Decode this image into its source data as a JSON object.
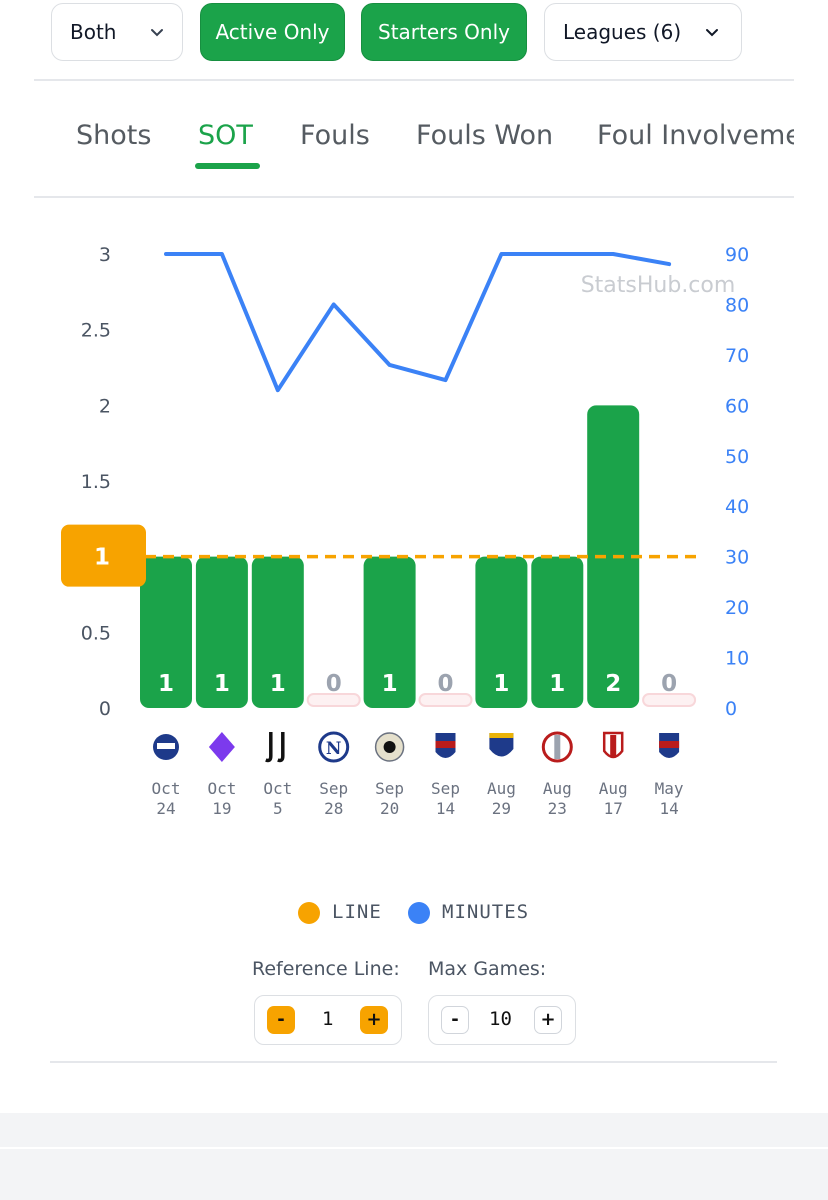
{
  "filters": {
    "side": "Both",
    "active_only": "Active Only",
    "starters_only": "Starters Only",
    "leagues": "Leagues (6)"
  },
  "tabs": [
    {
      "label": "Shots",
      "active": false
    },
    {
      "label": "SOT",
      "active": true
    },
    {
      "label": "Fouls",
      "active": false
    },
    {
      "label": "Fouls Won",
      "active": false
    },
    {
      "label": "Foul Involveme",
      "active": false
    }
  ],
  "watermark": "StatsHub.com",
  "colors": {
    "bar": "#1ba34a",
    "line": "#f7a300",
    "minutes": "#3b82f6",
    "zero_marker": "#f8d7da"
  },
  "chart_data": {
    "type": "bar",
    "categories": [
      {
        "month": "Oct",
        "day": "24",
        "opponent_icon": "pisa-crest-icon"
      },
      {
        "month": "Oct",
        "day": "19",
        "opponent_icon": "fiorentina-crest-icon"
      },
      {
        "month": "Oct",
        "day": "5",
        "opponent_icon": "juventus-crest-icon"
      },
      {
        "month": "Sep",
        "day": "28",
        "opponent_icon": "napoli-crest-icon"
      },
      {
        "month": "Sep",
        "day": "20",
        "opponent_icon": "udinese-crest-icon"
      },
      {
        "month": "Sep",
        "day": "14",
        "opponent_icon": "bologna-crest-icon"
      },
      {
        "month": "Aug",
        "day": "29",
        "opponent_icon": "lecce-crest-icon"
      },
      {
        "month": "Aug",
        "day": "23",
        "opponent_icon": "cremonese-crest-icon"
      },
      {
        "month": "Aug",
        "day": "17",
        "opponent_icon": "bari-crest-icon"
      },
      {
        "month": "May",
        "day": "14",
        "opponent_icon": "bologna-crest-icon"
      }
    ],
    "values": [
      1,
      1,
      1,
      0,
      1,
      0,
      1,
      1,
      2,
      0
    ],
    "minutes": [
      90,
      90,
      63,
      80,
      68,
      65,
      90,
      90,
      90,
      88
    ],
    "line_value": 1,
    "line_label": "1",
    "y_ticks": [
      "0",
      "0.5",
      "1",
      "1.5",
      "2",
      "2.5",
      "3"
    ],
    "y2_ticks": [
      "0",
      "10",
      "20",
      "30",
      "40",
      "50",
      "60",
      "70",
      "80",
      "90"
    ],
    "ylim": [
      0,
      3
    ],
    "y2lim": [
      0,
      90
    ],
    "legend": [
      {
        "label": "LINE",
        "color": "#f7a300"
      },
      {
        "label": "MINUTES",
        "color": "#3b82f6"
      }
    ],
    "legend_position": "bottom"
  },
  "controls": {
    "reference_line": {
      "label": "Reference Line:",
      "value": "1",
      "minus": "-",
      "plus": "+"
    },
    "max_games": {
      "label": "Max Games:",
      "value": "10",
      "minus": "-",
      "plus": "+"
    }
  }
}
